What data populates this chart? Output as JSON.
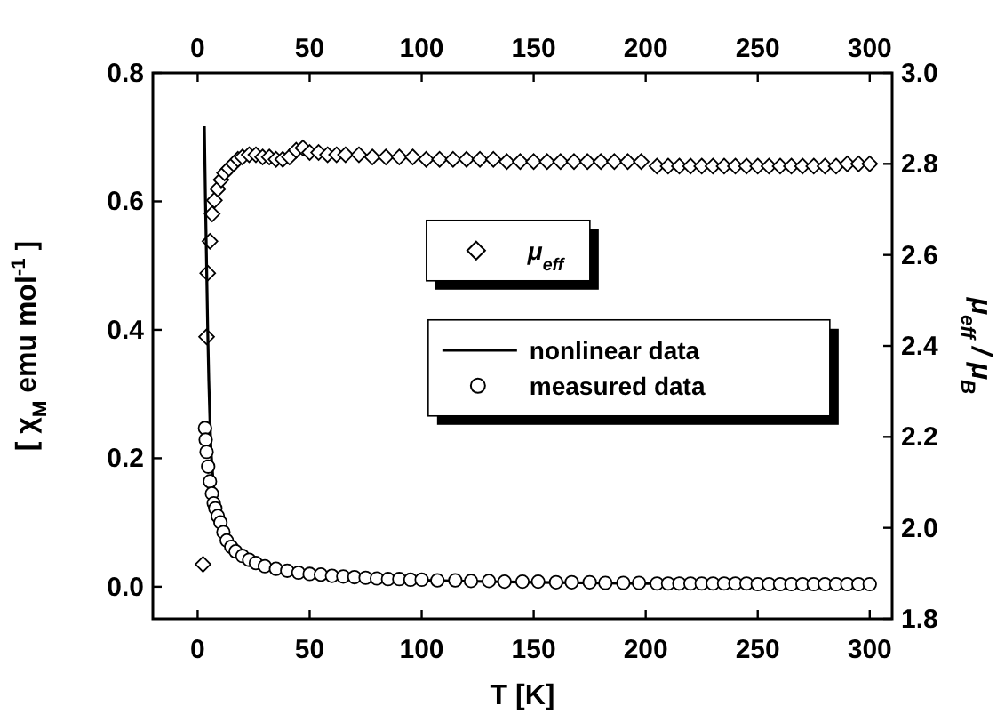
{
  "chart_data": {
    "type": "scatter",
    "xlabel": "T [K]",
    "ylabel": "[ χ$_{M}$ emu mol$^{-1}$ ]",
    "y2label": "μ$_{eff}$ / μ$_{B}$",
    "xlim": [
      -20,
      310
    ],
    "xticks": [
      0,
      50,
      100,
      150,
      200,
      250,
      300
    ],
    "x2lim": [
      -20,
      310
    ],
    "x2ticks": [
      0,
      50,
      100,
      150,
      200,
      250,
      300
    ],
    "ylim": [
      -0.05,
      0.8
    ],
    "yticks": [
      {
        "value": 0,
        "label": "0.0"
      },
      0.2,
      0.4,
      0.6,
      0.8
    ],
    "y2lim": [
      1.8,
      3.0
    ],
    "y2ticks": [
      1.8,
      {
        "value": 2,
        "label": "2.0"
      },
      2.2,
      2.4,
      2.6,
      2.8,
      {
        "value": 3,
        "label": "3.0"
      }
    ],
    "grid": false,
    "legend": "right",
    "series": [
      {
        "name": "μ$_{eff}$",
        "axis": "y2",
        "marker": "diamond",
        "color": "#000000",
        "x": [
          2.4,
          4,
          4.5,
          5.5,
          6.5,
          7.5,
          9,
          10.5,
          12,
          14,
          16,
          18,
          20,
          23,
          26,
          29,
          32,
          35,
          38,
          41,
          44,
          47,
          50,
          54,
          58,
          62,
          66,
          72,
          78,
          84,
          90,
          96,
          102,
          108,
          114,
          120,
          126,
          132,
          138,
          144,
          150,
          156,
          162,
          168,
          174,
          180,
          186,
          192,
          198,
          205,
          210,
          215,
          220,
          225,
          230,
          235,
          240,
          245,
          250,
          255,
          260,
          265,
          270,
          275,
          280,
          285,
          290,
          295,
          300
        ],
        "values": [
          1.92,
          2.42,
          2.56,
          2.63,
          2.69,
          2.72,
          2.745,
          2.765,
          2.78,
          2.79,
          2.8,
          2.81,
          2.815,
          2.82,
          2.82,
          2.815,
          2.815,
          2.81,
          2.81,
          2.815,
          2.83,
          2.835,
          2.825,
          2.825,
          2.82,
          2.82,
          2.82,
          2.82,
          2.815,
          2.815,
          2.815,
          2.815,
          2.81,
          2.81,
          2.81,
          2.81,
          2.81,
          2.81,
          2.805,
          2.805,
          2.805,
          2.805,
          2.805,
          2.805,
          2.805,
          2.805,
          2.805,
          2.805,
          2.805,
          2.795,
          2.795,
          2.795,
          2.795,
          2.795,
          2.795,
          2.795,
          2.795,
          2.795,
          2.795,
          2.795,
          2.795,
          2.795,
          2.795,
          2.795,
          2.795,
          2.795,
          2.8,
          2.8,
          2.8
        ]
      },
      {
        "name": "nonlinear data",
        "type": "line",
        "marker": "none",
        "line_style": "solid",
        "color": "#000000",
        "x": [
          3,
          3.5,
          4,
          4.5,
          5,
          5.5,
          6,
          7,
          8,
          10,
          13,
          20,
          30,
          50,
          100,
          150,
          200,
          300
        ],
        "values": [
          0.717,
          0.6,
          0.5,
          0.4,
          0.32,
          0.26,
          0.21,
          0.16,
          0.13,
          0.1,
          0.074,
          0.049,
          0.033,
          0.02,
          0.01,
          0.007,
          0.005,
          0.004
        ]
      },
      {
        "name": "measured data",
        "marker": "circle",
        "color": "#000000",
        "x": [
          3.3,
          3.6,
          4,
          4.7,
          5.5,
          6.4,
          7.2,
          7.9,
          9,
          10.2,
          11.5,
          13,
          15,
          17,
          20,
          23,
          26,
          30,
          35,
          40,
          45,
          50,
          55,
          60,
          65,
          70,
          75,
          80,
          85,
          90,
          95,
          100,
          107,
          115,
          122,
          130,
          137,
          145,
          152,
          160,
          167,
          175,
          182,
          190,
          197,
          205,
          210,
          215,
          220,
          225,
          230,
          235,
          240,
          245,
          250,
          255,
          260,
          265,
          270,
          275,
          280,
          285,
          290,
          295,
          300
        ],
        "values": [
          0.247,
          0.229,
          0.21,
          0.187,
          0.164,
          0.145,
          0.13,
          0.122,
          0.11,
          0.1,
          0.085,
          0.072,
          0.062,
          0.055,
          0.048,
          0.042,
          0.037,
          0.032,
          0.028,
          0.025,
          0.022,
          0.02,
          0.019,
          0.017,
          0.016,
          0.015,
          0.014,
          0.013,
          0.012,
          0.012,
          0.011,
          0.011,
          0.01,
          0.01,
          0.009,
          0.009,
          0.008,
          0.008,
          0.008,
          0.007,
          0.007,
          0.007,
          0.006,
          0.006,
          0.006,
          0.005,
          0.005,
          0.005,
          0.005,
          0.005,
          0.005,
          0.005,
          0.005,
          0.005,
          0.004,
          0.004,
          0.004,
          0.004,
          0.004,
          0.004,
          0.004,
          0.004,
          0.004,
          0.004,
          0.004
        ]
      }
    ]
  }
}
